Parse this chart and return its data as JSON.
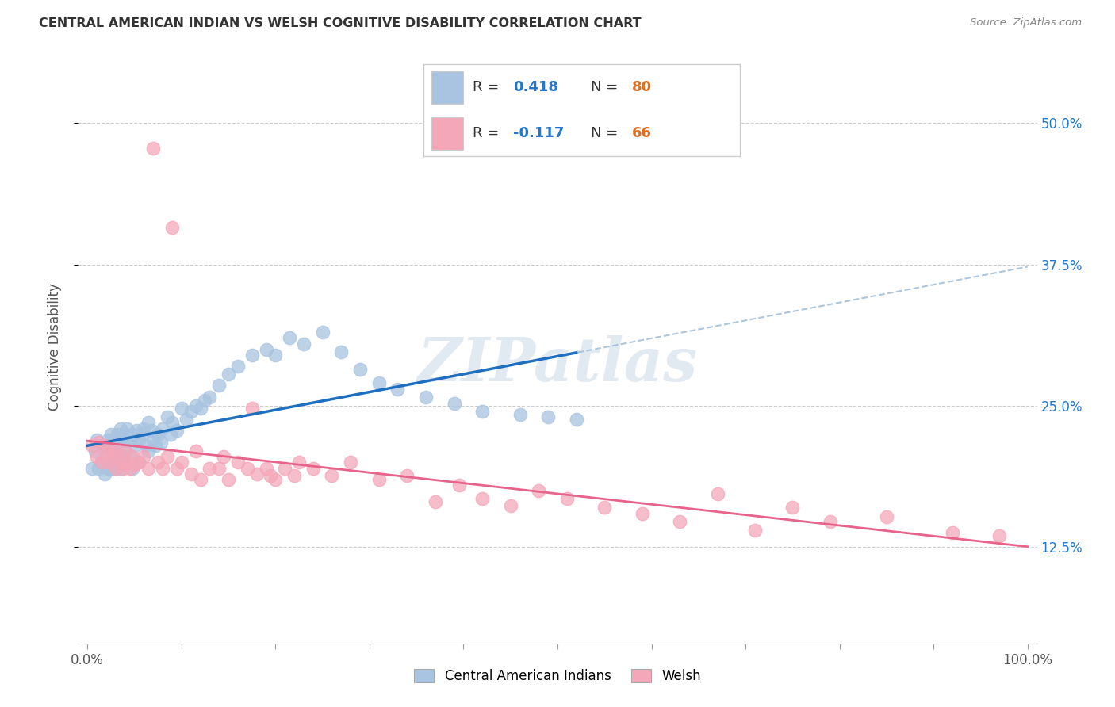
{
  "title": "CENTRAL AMERICAN INDIAN VS WELSH COGNITIVE DISABILITY CORRELATION CHART",
  "source": "Source: ZipAtlas.com",
  "ylabel": "Cognitive Disability",
  "ytick_labels": [
    "12.5%",
    "25.0%",
    "37.5%",
    "50.0%"
  ],
  "ytick_values": [
    0.125,
    0.25,
    0.375,
    0.5
  ],
  "xlim": [
    -0.01,
    1.01
  ],
  "ylim": [
    0.04,
    0.565
  ],
  "blue_R": 0.418,
  "blue_N": 80,
  "pink_R": -0.117,
  "pink_N": 66,
  "blue_color": "#a8c4e0",
  "pink_color": "#f4a7b9",
  "blue_line_color": "#1f6fbf",
  "pink_line_color": "#e8638a",
  "blue_dashed_color": "#99b8d4",
  "watermark_color": "#d0dce8",
  "background_color": "#ffffff",
  "legend_blue_label": "Central American Indians",
  "legend_pink_label": "Welsh",
  "blue_scatter_x": [
    0.005,
    0.008,
    0.01,
    0.012,
    0.015,
    0.015,
    0.018,
    0.018,
    0.02,
    0.02,
    0.022,
    0.022,
    0.025,
    0.025,
    0.025,
    0.028,
    0.028,
    0.03,
    0.03,
    0.03,
    0.032,
    0.032,
    0.035,
    0.035,
    0.035,
    0.038,
    0.038,
    0.04,
    0.04,
    0.042,
    0.042,
    0.045,
    0.045,
    0.048,
    0.048,
    0.05,
    0.052,
    0.055,
    0.055,
    0.058,
    0.06,
    0.062,
    0.065,
    0.065,
    0.068,
    0.07,
    0.072,
    0.075,
    0.078,
    0.08,
    0.085,
    0.088,
    0.09,
    0.095,
    0.1,
    0.105,
    0.11,
    0.115,
    0.12,
    0.125,
    0.13,
    0.14,
    0.15,
    0.16,
    0.175,
    0.19,
    0.2,
    0.215,
    0.23,
    0.25,
    0.27,
    0.29,
    0.31,
    0.33,
    0.36,
    0.39,
    0.42,
    0.46,
    0.49,
    0.52
  ],
  "blue_scatter_y": [
    0.195,
    0.21,
    0.22,
    0.195,
    0.215,
    0.2,
    0.205,
    0.19,
    0.215,
    0.2,
    0.22,
    0.195,
    0.21,
    0.225,
    0.195,
    0.215,
    0.2,
    0.22,
    0.21,
    0.195,
    0.225,
    0.2,
    0.215,
    0.23,
    0.195,
    0.22,
    0.205,
    0.225,
    0.21,
    0.23,
    0.2,
    0.22,
    0.205,
    0.225,
    0.195,
    0.215,
    0.228,
    0.22,
    0.2,
    0.225,
    0.23,
    0.215,
    0.235,
    0.21,
    0.228,
    0.22,
    0.215,
    0.225,
    0.218,
    0.23,
    0.24,
    0.225,
    0.235,
    0.228,
    0.248,
    0.238,
    0.245,
    0.25,
    0.248,
    0.255,
    0.258,
    0.268,
    0.278,
    0.285,
    0.295,
    0.3,
    0.295,
    0.31,
    0.305,
    0.315,
    0.298,
    0.282,
    0.27,
    0.265,
    0.258,
    0.252,
    0.245,
    0.242,
    0.24,
    0.238
  ],
  "pink_scatter_x": [
    0.005,
    0.01,
    0.012,
    0.015,
    0.018,
    0.02,
    0.022,
    0.025,
    0.028,
    0.03,
    0.032,
    0.035,
    0.038,
    0.04,
    0.042,
    0.045,
    0.048,
    0.05,
    0.055,
    0.06,
    0.065,
    0.07,
    0.075,
    0.08,
    0.085,
    0.09,
    0.095,
    0.1,
    0.11,
    0.115,
    0.12,
    0.13,
    0.14,
    0.145,
    0.15,
    0.16,
    0.17,
    0.175,
    0.18,
    0.19,
    0.195,
    0.2,
    0.21,
    0.22,
    0.225,
    0.24,
    0.26,
    0.28,
    0.31,
    0.34,
    0.37,
    0.395,
    0.42,
    0.45,
    0.48,
    0.51,
    0.55,
    0.59,
    0.63,
    0.67,
    0.71,
    0.75,
    0.79,
    0.85,
    0.92,
    0.97
  ],
  "pink_scatter_y": [
    0.215,
    0.205,
    0.218,
    0.2,
    0.215,
    0.208,
    0.2,
    0.21,
    0.205,
    0.195,
    0.21,
    0.2,
    0.195,
    0.21,
    0.2,
    0.195,
    0.205,
    0.198,
    0.2,
    0.205,
    0.195,
    0.478,
    0.2,
    0.195,
    0.205,
    0.408,
    0.195,
    0.2,
    0.19,
    0.21,
    0.185,
    0.195,
    0.195,
    0.205,
    0.185,
    0.2,
    0.195,
    0.248,
    0.19,
    0.195,
    0.188,
    0.185,
    0.195,
    0.188,
    0.2,
    0.195,
    0.188,
    0.2,
    0.185,
    0.188,
    0.165,
    0.18,
    0.168,
    0.162,
    0.175,
    0.168,
    0.16,
    0.155,
    0.148,
    0.172,
    0.14,
    0.16,
    0.148,
    0.152,
    0.138,
    0.135
  ]
}
